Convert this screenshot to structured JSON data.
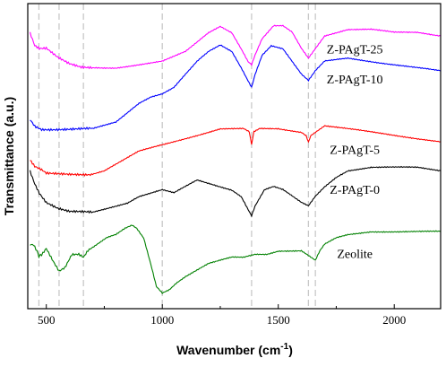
{
  "chart_data": {
    "type": "line",
    "xlabel": "Wavenumber (cm",
    "xlabel_superscript": "-1",
    "xlabel_suffix": ")",
    "ylabel": "Transmittance (a.u.)",
    "xlim": [
      420,
      2200
    ],
    "x_ticks": [
      500,
      1000,
      1500,
      2000
    ],
    "y_ticks_labeled": false,
    "grid": false,
    "legend": "none",
    "reference_lines": [
      468,
      555,
      660,
      1000,
      1385,
      1630,
      1660
    ],
    "series": [
      {
        "name": "Z-PAgT-25",
        "color": "#ff00ff",
        "label_x": 1830,
        "x": [
          430,
          450,
          470,
          500,
          550,
          600,
          650,
          700,
          800,
          900,
          1000,
          1100,
          1150,
          1200,
          1250,
          1300,
          1340,
          1370,
          1385,
          1400,
          1430,
          1480,
          1520,
          1560,
          1600,
          1630,
          1660,
          1700,
          1800,
          1900,
          2000,
          2100,
          2200
        ],
        "y": [
          0.91,
          0.87,
          0.86,
          0.86,
          0.83,
          0.81,
          0.8,
          0.8,
          0.8,
          0.81,
          0.82,
          0.85,
          0.88,
          0.91,
          0.93,
          0.91,
          0.86,
          0.82,
          0.81,
          0.84,
          0.89,
          0.93,
          0.93,
          0.91,
          0.86,
          0.83,
          0.86,
          0.9,
          0.92,
          0.92,
          0.91,
          0.91,
          0.9
        ]
      },
      {
        "name": "Z-PAgT-10",
        "color": "#0000ff",
        "label_x": 1830,
        "x": [
          430,
          450,
          480,
          500,
          550,
          600,
          650,
          700,
          750,
          800,
          850,
          900,
          950,
          1000,
          1050,
          1100,
          1150,
          1200,
          1250,
          1300,
          1340,
          1370,
          1385,
          1400,
          1430,
          1470,
          1520,
          1560,
          1600,
          1630,
          1660,
          1700,
          1800,
          1900,
          2000,
          2100,
          2200
        ],
        "y": [
          0.64,
          0.62,
          0.61,
          0.61,
          0.61,
          0.61,
          0.61,
          0.61,
          0.62,
          0.63,
          0.66,
          0.69,
          0.71,
          0.72,
          0.74,
          0.78,
          0.82,
          0.85,
          0.87,
          0.85,
          0.8,
          0.76,
          0.74,
          0.78,
          0.84,
          0.87,
          0.86,
          0.82,
          0.78,
          0.76,
          0.79,
          0.82,
          0.83,
          0.82,
          0.81,
          0.8,
          0.79
        ]
      },
      {
        "name": "Z-PAgT-5",
        "color": "#ff0000",
        "label_x": 1830,
        "x": [
          430,
          450,
          480,
          500,
          550,
          600,
          650,
          700,
          750,
          800,
          850,
          900,
          950,
          1000,
          1050,
          1100,
          1200,
          1250,
          1300,
          1350,
          1375,
          1385,
          1395,
          1420,
          1500,
          1600,
          1620,
          1630,
          1640,
          1660,
          1700,
          1800,
          1900,
          2000,
          2100,
          2200
        ],
        "y": [
          0.51,
          0.49,
          0.48,
          0.47,
          0.47,
          0.47,
          0.47,
          0.47,
          0.48,
          0.5,
          0.52,
          0.54,
          0.55,
          0.56,
          0.57,
          0.58,
          0.6,
          0.61,
          0.61,
          0.61,
          0.6,
          0.56,
          0.6,
          0.61,
          0.61,
          0.6,
          0.59,
          0.57,
          0.59,
          0.6,
          0.62,
          0.61,
          0.6,
          0.59,
          0.58,
          0.57
        ]
      },
      {
        "name": "Z-PAgT-0",
        "color": "#000000",
        "label_x": 1830,
        "x": [
          430,
          450,
          470,
          500,
          550,
          600,
          650,
          700,
          750,
          800,
          850,
          900,
          950,
          1000,
          1050,
          1100,
          1150,
          1200,
          1250,
          1300,
          1340,
          1370,
          1385,
          1400,
          1440,
          1480,
          1520,
          1560,
          1600,
          1630,
          1660,
          1700,
          1750,
          1800,
          1900,
          2000,
          2100,
          2200
        ],
        "y": [
          0.48,
          0.44,
          0.41,
          0.38,
          0.36,
          0.35,
          0.35,
          0.35,
          0.36,
          0.37,
          0.38,
          0.4,
          0.41,
          0.42,
          0.41,
          0.43,
          0.45,
          0.44,
          0.43,
          0.42,
          0.4,
          0.36,
          0.34,
          0.37,
          0.42,
          0.43,
          0.42,
          0.4,
          0.38,
          0.37,
          0.4,
          0.43,
          0.46,
          0.48,
          0.49,
          0.49,
          0.49,
          0.48
        ]
      },
      {
        "name": "Zeolite",
        "color": "#008000",
        "label_x": 1830,
        "x": [
          430,
          445,
          460,
          468,
          480,
          500,
          530,
          555,
          580,
          610,
          640,
          660,
          680,
          720,
          760,
          800,
          840,
          870,
          890,
          920,
          950,
          975,
          1000,
          1030,
          1060,
          1100,
          1150,
          1200,
          1250,
          1300,
          1350,
          1400,
          1450,
          1500,
          1550,
          1600,
          1640,
          1660,
          1680,
          1700,
          1750,
          1800,
          1900,
          2000,
          2100,
          2200
        ],
        "y": [
          0.25,
          0.25,
          0.23,
          0.21,
          0.22,
          0.24,
          0.2,
          0.17,
          0.18,
          0.22,
          0.22,
          0.21,
          0.23,
          0.25,
          0.27,
          0.28,
          0.3,
          0.31,
          0.3,
          0.27,
          0.19,
          0.12,
          0.1,
          0.11,
          0.13,
          0.15,
          0.17,
          0.19,
          0.2,
          0.21,
          0.21,
          0.22,
          0.22,
          0.23,
          0.23,
          0.23,
          0.21,
          0.2,
          0.23,
          0.25,
          0.27,
          0.28,
          0.29,
          0.29,
          0.29,
          0.29
        ]
      }
    ]
  }
}
